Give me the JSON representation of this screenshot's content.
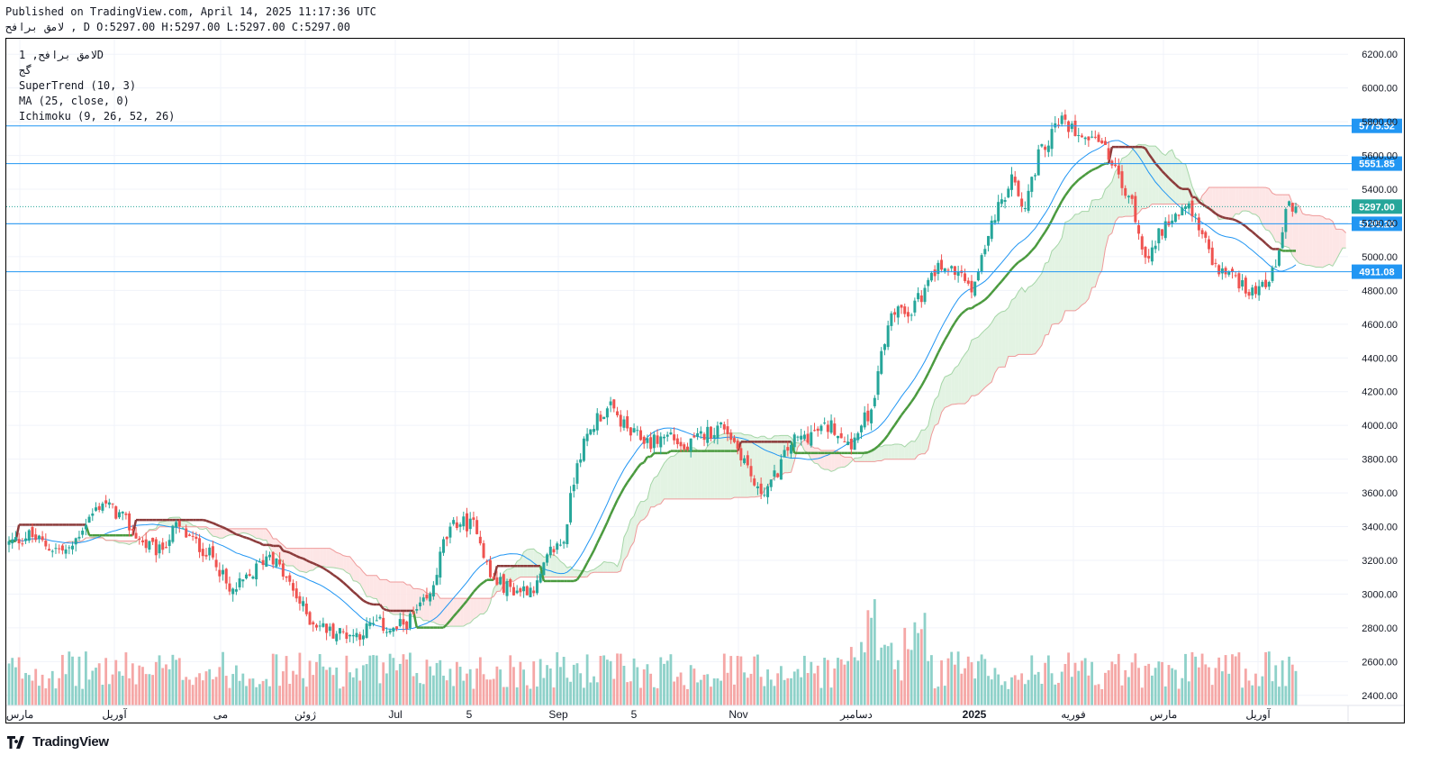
{
  "header": {
    "published": "Published on TradingView.com, April 14, 2025 11:17:36 UTC",
    "symbol_line": "لامق برافح , D O:5297.00 H:5297.00 L:5297.00 C:5297.00"
  },
  "legend": {
    "line1": "لامق برافح, 1D",
    "line2": "ﮔﺞ",
    "line3": "SuperTrend (10, 3)",
    "line4": "MA (25, close, 0)",
    "line5": "Ichimoku (9, 26, 52, 26)"
  },
  "brand": {
    "name": "TradingView",
    "logo_icon": "tradingview-logo-icon"
  },
  "colors": {
    "up": "#26a69a",
    "down": "#ef5350",
    "vol_up": "#8ed1c9",
    "vol_down": "#f5a7a6",
    "supertrend_up": "#4a9a3e",
    "supertrend_down": "#8b3a3a",
    "ma": "#2196f3",
    "cloud_bull": "#e0f2e0",
    "cloud_bear": "#fde3e3",
    "hline": "#2196f3",
    "last_price": "#26a69a"
  },
  "chart_data": {
    "type": "candlestick",
    "y_axis": {
      "ticks": [
        2400,
        2600,
        2800,
        3000,
        3200,
        3400,
        3600,
        3800,
        4000,
        4200,
        4400,
        4600,
        4800,
        5000,
        5200,
        5400,
        5600,
        5800,
        6000,
        6200
      ],
      "range": [
        2340,
        6260
      ],
      "position": "right"
    },
    "x_axis": {
      "labels": [
        "مارس",
        "آوریل",
        "می",
        "ژوئن",
        "Jul",
        "5",
        "Sep",
        "5",
        "Nov",
        "دسامبر",
        "2025",
        "فوریه",
        "مارس",
        "آوریل"
      ],
      "bold_label": "2025"
    },
    "horizontal_levels": [
      {
        "value": 5775.52,
        "label": "5775.52",
        "style": "solid"
      },
      {
        "value": 5551.85,
        "label": "5551.85",
        "style": "solid"
      },
      {
        "value": 5195.2,
        "label": "5195.20",
        "style": "solid"
      },
      {
        "value": 4911.08,
        "label": "4911.08",
        "style": "solid"
      }
    ],
    "last_price": {
      "value": 5297.0,
      "label": "5297.00",
      "style": "dotted"
    },
    "anchors": [
      [
        0,
        3300
      ],
      [
        6,
        3350
      ],
      [
        12,
        3280
      ],
      [
        18,
        3250
      ],
      [
        22,
        3400
      ],
      [
        28,
        3550
      ],
      [
        34,
        3450
      ],
      [
        40,
        3300
      ],
      [
        45,
        3250
      ],
      [
        50,
        3400
      ],
      [
        56,
        3300
      ],
      [
        62,
        3200
      ],
      [
        66,
        3000
      ],
      [
        72,
        3100
      ],
      [
        78,
        3250
      ],
      [
        84,
        3050
      ],
      [
        90,
        2850
      ],
      [
        96,
        2780
      ],
      [
        104,
        2760
      ],
      [
        110,
        2830
      ],
      [
        115,
        2780
      ],
      [
        120,
        2850
      ],
      [
        126,
        2980
      ],
      [
        130,
        3300
      ],
      [
        134,
        3430
      ],
      [
        140,
        3400
      ],
      [
        144,
        3100
      ],
      [
        148,
        3050
      ],
      [
        152,
        3020
      ],
      [
        158,
        3050
      ],
      [
        162,
        3250
      ],
      [
        166,
        3320
      ],
      [
        170,
        3800
      ],
      [
        176,
        4050
      ],
      [
        180,
        4100
      ],
      [
        186,
        3950
      ],
      [
        192,
        3900
      ],
      [
        198,
        3950
      ],
      [
        202,
        3850
      ],
      [
        208,
        3950
      ],
      [
        214,
        4000
      ],
      [
        220,
        3800
      ],
      [
        224,
        3600
      ],
      [
        228,
        3650
      ],
      [
        234,
        3900
      ],
      [
        240,
        3950
      ],
      [
        246,
        4000
      ],
      [
        252,
        3900
      ],
      [
        258,
        4100
      ],
      [
        264,
        4700
      ],
      [
        268,
        4650
      ],
      [
        274,
        4800
      ],
      [
        278,
        4950
      ],
      [
        284,
        4900
      ],
      [
        288,
        4800
      ],
      [
        294,
        5200
      ],
      [
        300,
        5450
      ],
      [
        304,
        5300
      ],
      [
        308,
        5600
      ],
      [
        314,
        5800
      ],
      [
        320,
        5750
      ],
      [
        326,
        5700
      ],
      [
        330,
        5550
      ],
      [
        336,
        5300
      ],
      [
        340,
        5000
      ],
      [
        346,
        5200
      ],
      [
        352,
        5300
      ],
      [
        356,
        5200
      ],
      [
        360,
        4950
      ],
      [
        364,
        4900
      ],
      [
        368,
        4850
      ],
      [
        372,
        4800
      ],
      [
        376,
        4850
      ],
      [
        378,
        4900
      ],
      [
        380,
        5000
      ],
      [
        382,
        5297
      ]
    ],
    "candle_count": 386
  }
}
